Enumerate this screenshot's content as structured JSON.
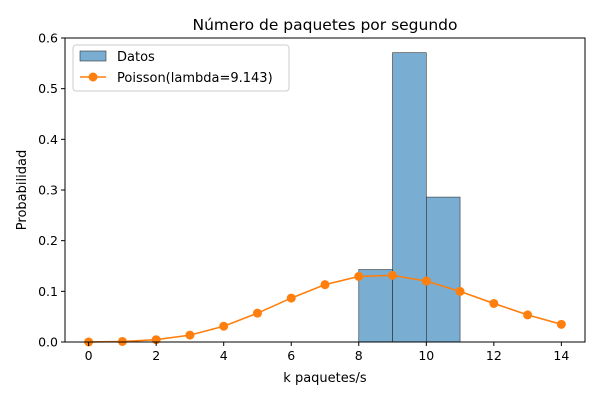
{
  "chart_data": {
    "type": "bar",
    "title": "Número de paquetes por segundo",
    "xlabel": "k paquetes/s",
    "ylabel": "Probabilidad",
    "xlim": [
      -0.7,
      14.7
    ],
    "ylim": [
      0,
      0.6
    ],
    "xticks": [
      0,
      2,
      4,
      6,
      8,
      10,
      12,
      14
    ],
    "yticks": [
      0.0,
      0.1,
      0.2,
      0.3,
      0.4,
      0.5,
      0.6
    ],
    "xtick_labels": [
      "0",
      "2",
      "4",
      "6",
      "8",
      "10",
      "12",
      "14"
    ],
    "ytick_labels": [
      "0.0",
      "0.1",
      "0.2",
      "0.3",
      "0.4",
      "0.5",
      "0.6"
    ],
    "grid": false,
    "legend_position": "upper-left",
    "colors": {
      "hist": "#1f77b4",
      "line": "#ff7f0e"
    },
    "histogram": {
      "name": "Datos",
      "bins": [
        {
          "x0": 8,
          "x1": 9,
          "value": 0.143
        },
        {
          "x0": 9,
          "x1": 10,
          "value": 0.571
        },
        {
          "x0": 10,
          "x1": 11,
          "value": 0.286
        }
      ]
    },
    "series": [
      {
        "name": "Poisson(lambda=9.143)",
        "x": [
          0,
          1,
          2,
          3,
          4,
          5,
          6,
          7,
          8,
          9,
          10,
          11,
          12,
          13,
          14
        ],
        "values": [
          0.0001,
          0.001,
          0.0045,
          0.0136,
          0.0311,
          0.0569,
          0.0867,
          0.1132,
          0.1294,
          0.1315,
          0.1202,
          0.0999,
          0.0761,
          0.0535,
          0.0349
        ]
      }
    ]
  }
}
